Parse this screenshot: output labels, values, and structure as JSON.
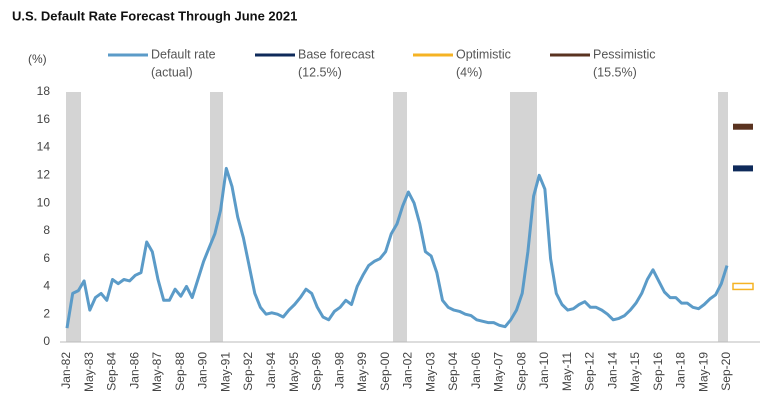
{
  "chart_data": {
    "type": "line",
    "title": "U.S. Default Rate Forecast Through June 2021",
    "y_label": "(%)",
    "categories": [
      "Jan-82",
      null,
      null,
      null,
      "May-83",
      null,
      null,
      null,
      "Sep-84",
      null,
      null,
      null,
      "Jan-86",
      null,
      null,
      null,
      "May-87",
      null,
      null,
      null,
      "Sep-88",
      null,
      null,
      null,
      "Jan-90",
      null,
      null,
      null,
      "May-91",
      null,
      null,
      null,
      "Sep-92",
      null,
      null,
      null,
      "Jan-94",
      null,
      null,
      null,
      "May-95",
      null,
      null,
      null,
      "Sep-96",
      null,
      null,
      null,
      "Jan-98",
      null,
      null,
      null,
      "May-99",
      null,
      null,
      null,
      "Sep-00",
      null,
      null,
      null,
      "Jan-02",
      null,
      null,
      null,
      "May-03",
      null,
      null,
      null,
      "Sep-04",
      null,
      null,
      null,
      "Jan-06",
      null,
      null,
      null,
      "May-07",
      null,
      null,
      null,
      "Sep-08",
      null,
      null,
      null,
      "Jan-10",
      null,
      null,
      null,
      "May-11",
      null,
      null,
      null,
      "Sep-12",
      null,
      null,
      null,
      "Jan-14",
      null,
      null,
      null,
      "May-15",
      null,
      null,
      null,
      "Sep-16",
      null,
      null,
      null,
      "Jan-18",
      null,
      null,
      null,
      "May-19",
      null,
      null,
      null,
      "Sep-20"
    ],
    "series": [
      {
        "name": "Default rate",
        "label": "(actual)",
        "color": "#5b9bc8",
        "values": [
          1.0,
          3.5,
          3.7,
          4.4,
          2.3,
          3.2,
          3.5,
          3.0,
          4.5,
          4.2,
          4.5,
          4.4,
          4.8,
          5.0,
          7.2,
          6.5,
          4.5,
          3.0,
          3.0,
          3.8,
          3.3,
          4.0,
          3.2,
          4.5,
          5.8,
          6.8,
          7.8,
          9.5,
          12.5,
          11.2,
          9.0,
          7.5,
          5.5,
          3.5,
          2.5,
          2.0,
          2.1,
          2.0,
          1.8,
          2.3,
          2.7,
          3.2,
          3.8,
          3.5,
          2.5,
          1.8,
          1.6,
          2.2,
          2.5,
          3.0,
          2.7,
          4.0,
          4.8,
          5.5,
          5.8,
          6.0,
          6.5,
          7.8,
          8.5,
          9.8,
          10.8,
          10.0,
          8.5,
          6.5,
          6.2,
          5.0,
          3.0,
          2.5,
          2.3,
          2.2,
          2.0,
          1.9,
          1.6,
          1.5,
          1.4,
          1.4,
          1.2,
          1.1,
          1.6,
          2.3,
          3.5,
          6.5,
          10.5,
          12.0,
          11.0,
          6.0,
          3.5,
          2.7,
          2.3,
          2.4,
          2.7,
          2.9,
          2.5,
          2.5,
          2.3,
          2.0,
          1.6,
          1.7,
          1.9,
          2.3,
          2.8,
          3.5,
          4.5,
          5.2,
          4.4,
          3.6,
          3.2,
          3.2,
          2.8,
          2.8,
          2.5,
          2.4,
          2.7,
          3.1,
          3.4,
          4.2,
          5.5
        ]
      }
    ],
    "forecasts": [
      {
        "name": "Base forecast",
        "label": "(12.5%)",
        "value": 12.5,
        "color": "#0e2a5a"
      },
      {
        "name": "Optimistic",
        "label": "(4%)",
        "value": 4,
        "color": "#f5b324"
      },
      {
        "name": "Pessimistic",
        "label": "(15.5%)",
        "value": 15.5,
        "color": "#5a3320"
      }
    ],
    "ylim": [
      0,
      18
    ],
    "yticks": [
      0,
      2,
      4,
      6,
      8,
      10,
      12,
      14,
      16,
      18
    ],
    "grid": false
  }
}
